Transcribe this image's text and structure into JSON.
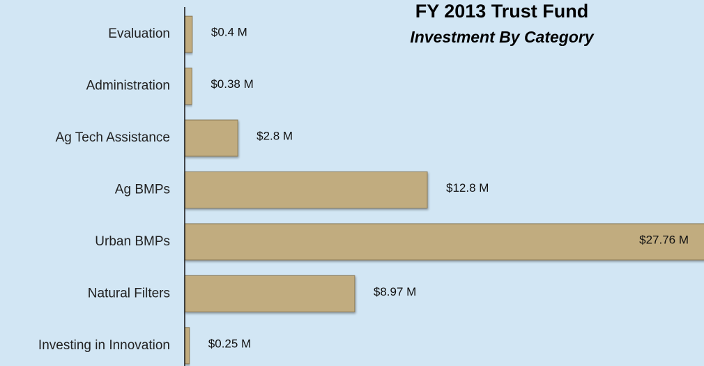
{
  "chart_data": {
    "type": "hbar",
    "title": "FY 2013 Trust Fund",
    "subtitle": "Investment By Category",
    "categories": [
      "Evaluation",
      "Administration",
      "Ag Tech Assistance",
      "Ag BMPs",
      "Urban BMPs",
      "Natural Filters",
      "Investing in Innovation"
    ],
    "values": [
      0.4,
      0.38,
      2.8,
      12.8,
      27.76,
      8.97,
      0.25
    ],
    "value_labels": [
      "$0.4 M",
      "$0.38 M",
      "$2.8 M",
      "$12.8 M",
      "$27.76 M",
      "$8.97 M",
      "$0.25 M"
    ],
    "color": "#c1ac7f",
    "xlim": [
      0,
      27.4
    ]
  }
}
